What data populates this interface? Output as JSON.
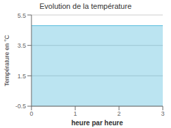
{
  "chart_data": {
    "type": "area",
    "title": "Evolution de la température",
    "xlabel": "heure par heure",
    "ylabel": "Température en °C",
    "x": [
      0,
      3
    ],
    "values": [
      4.8,
      4.8
    ],
    "color": "#55bbdd",
    "xlim": [
      0,
      3
    ],
    "ylim": [
      -0.5,
      5.5
    ],
    "xticks": [
      0,
      1,
      2,
      3
    ],
    "yticks": [
      -0.5,
      1.5,
      3.5,
      5.5
    ],
    "grid": true
  }
}
